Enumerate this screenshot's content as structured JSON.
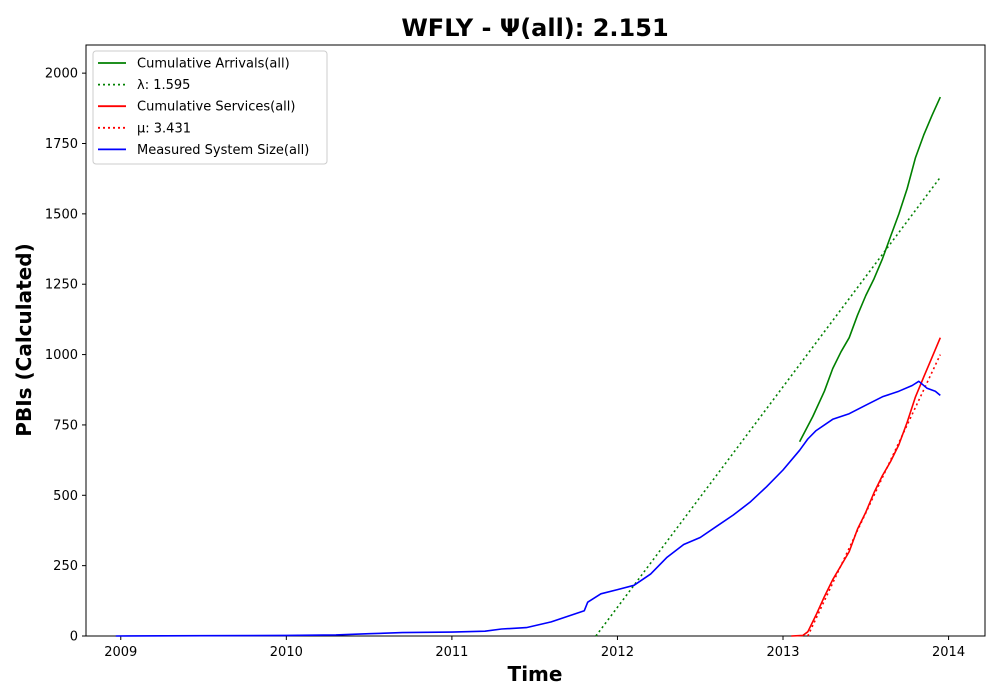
{
  "chart_data": {
    "type": "line",
    "title": "WFLY -  Ψ(all): 2.151",
    "xlabel": "Time",
    "ylabel": "PBIs (Calculated)",
    "xlim": [
      2008.79,
      2014.22
    ],
    "ylim": [
      0,
      2100
    ],
    "xticks": [
      2009,
      2010,
      2011,
      2012,
      2013,
      2014
    ],
    "xtick_labels": [
      "2009",
      "2010",
      "2011",
      "2012",
      "2013",
      "2014"
    ],
    "yticks": [
      0,
      250,
      500,
      750,
      1000,
      1250,
      1500,
      1750,
      2000
    ],
    "ytick_labels": [
      "0",
      "250",
      "500",
      "750",
      "1000",
      "1250",
      "1500",
      "1750",
      "2000"
    ],
    "grid": false,
    "legend_position": "top-left",
    "series": [
      {
        "name": "Cumulative Arrivals(all)",
        "legend": "Cumulative Arrivals(all)",
        "color": "#008000",
        "style": "solid",
        "points": [
          [
            2013.1,
            690
          ],
          [
            2013.18,
            780
          ],
          [
            2013.25,
            870
          ],
          [
            2013.3,
            950
          ],
          [
            2013.35,
            1010
          ],
          [
            2013.4,
            1060
          ],
          [
            2013.45,
            1140
          ],
          [
            2013.5,
            1210
          ],
          [
            2013.55,
            1270
          ],
          [
            2013.6,
            1340
          ],
          [
            2013.65,
            1420
          ],
          [
            2013.7,
            1500
          ],
          [
            2013.75,
            1590
          ],
          [
            2013.8,
            1700
          ],
          [
            2013.85,
            1780
          ],
          [
            2013.9,
            1850
          ],
          [
            2013.95,
            1915
          ]
        ]
      },
      {
        "name": "λ: 1.595",
        "legend": "λ: 1.595",
        "color": "#008000",
        "style": "dotted",
        "points": [
          [
            2011.87,
            0
          ],
          [
            2013.95,
            1630
          ]
        ]
      },
      {
        "name": "Cumulative Services(all)",
        "legend": "Cumulative Services(all)",
        "color": "#ff0000",
        "style": "solid",
        "points": [
          [
            2013.05,
            0
          ],
          [
            2013.12,
            2
          ],
          [
            2013.15,
            15
          ],
          [
            2013.2,
            75
          ],
          [
            2013.25,
            140
          ],
          [
            2013.3,
            200
          ],
          [
            2013.35,
            250
          ],
          [
            2013.4,
            300
          ],
          [
            2013.45,
            380
          ],
          [
            2013.5,
            440
          ],
          [
            2013.55,
            510
          ],
          [
            2013.6,
            570
          ],
          [
            2013.65,
            620
          ],
          [
            2013.7,
            680
          ],
          [
            2013.75,
            760
          ],
          [
            2013.8,
            850
          ],
          [
            2013.85,
            920
          ],
          [
            2013.9,
            990
          ],
          [
            2013.95,
            1060
          ]
        ]
      },
      {
        "name": "μ: 3.431",
        "legend": "μ: 3.431",
        "color": "#ff0000",
        "style": "dotted",
        "points": [
          [
            2013.15,
            0
          ],
          [
            2013.95,
            1000
          ]
        ]
      },
      {
        "name": "Measured System Size(all)",
        "legend": "Measured System Size(all)",
        "color": "#0000ff",
        "style": "solid",
        "points": [
          [
            2008.97,
            0
          ],
          [
            2009.5,
            1
          ],
          [
            2010.0,
            2
          ],
          [
            2010.3,
            4
          ],
          [
            2010.5,
            8
          ],
          [
            2010.7,
            12
          ],
          [
            2011.0,
            14
          ],
          [
            2011.2,
            17
          ],
          [
            2011.3,
            25
          ],
          [
            2011.45,
            30
          ],
          [
            2011.6,
            50
          ],
          [
            2011.8,
            90
          ],
          [
            2011.82,
            120
          ],
          [
            2011.9,
            150
          ],
          [
            2012.0,
            165
          ],
          [
            2012.1,
            180
          ],
          [
            2012.2,
            220
          ],
          [
            2012.3,
            280
          ],
          [
            2012.4,
            325
          ],
          [
            2012.5,
            350
          ],
          [
            2012.6,
            390
          ],
          [
            2012.7,
            430
          ],
          [
            2012.8,
            475
          ],
          [
            2012.9,
            530
          ],
          [
            2013.0,
            590
          ],
          [
            2013.1,
            660
          ],
          [
            2013.15,
            700
          ],
          [
            2013.2,
            730
          ],
          [
            2013.3,
            770
          ],
          [
            2013.4,
            790
          ],
          [
            2013.5,
            820
          ],
          [
            2013.6,
            850
          ],
          [
            2013.7,
            870
          ],
          [
            2013.78,
            890
          ],
          [
            2013.82,
            905
          ],
          [
            2013.87,
            880
          ],
          [
            2013.92,
            870
          ],
          [
            2013.95,
            855
          ]
        ]
      }
    ]
  }
}
